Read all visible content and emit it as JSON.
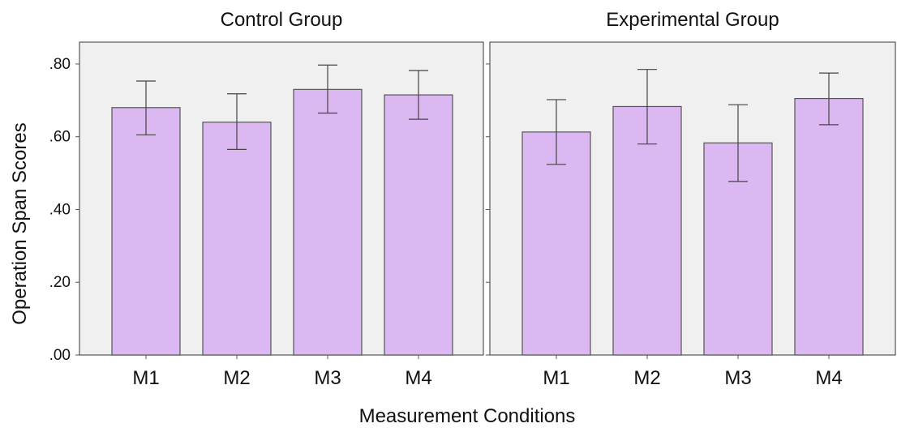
{
  "chart_data": {
    "type": "bar",
    "xlabel": "Measurement Conditions",
    "ylabel": "Operation Span Scores",
    "ylim": [
      0,
      0.86
    ],
    "yticks": [
      0,
      0.2,
      0.4,
      0.6,
      0.8
    ],
    "ytick_labels": [
      ".00",
      ".20",
      ".40",
      ".60",
      ".80"
    ],
    "grid": false,
    "bar_color": "#dcb8f2",
    "panel_background": "#f0f0f0",
    "panels": [
      {
        "title": "Control Group",
        "categories": [
          "M1",
          "M2",
          "M3",
          "M4"
        ],
        "values": [
          0.68,
          0.64,
          0.73,
          0.715
        ],
        "error_low": [
          0.605,
          0.565,
          0.665,
          0.648
        ],
        "error_high": [
          0.753,
          0.718,
          0.797,
          0.782
        ]
      },
      {
        "title": "Experimental Group",
        "categories": [
          "M1",
          "M2",
          "M3",
          "M4"
        ],
        "values": [
          0.613,
          0.683,
          0.583,
          0.705
        ],
        "error_low": [
          0.524,
          0.58,
          0.477,
          0.633
        ],
        "error_high": [
          0.702,
          0.785,
          0.688,
          0.775
        ]
      }
    ]
  }
}
